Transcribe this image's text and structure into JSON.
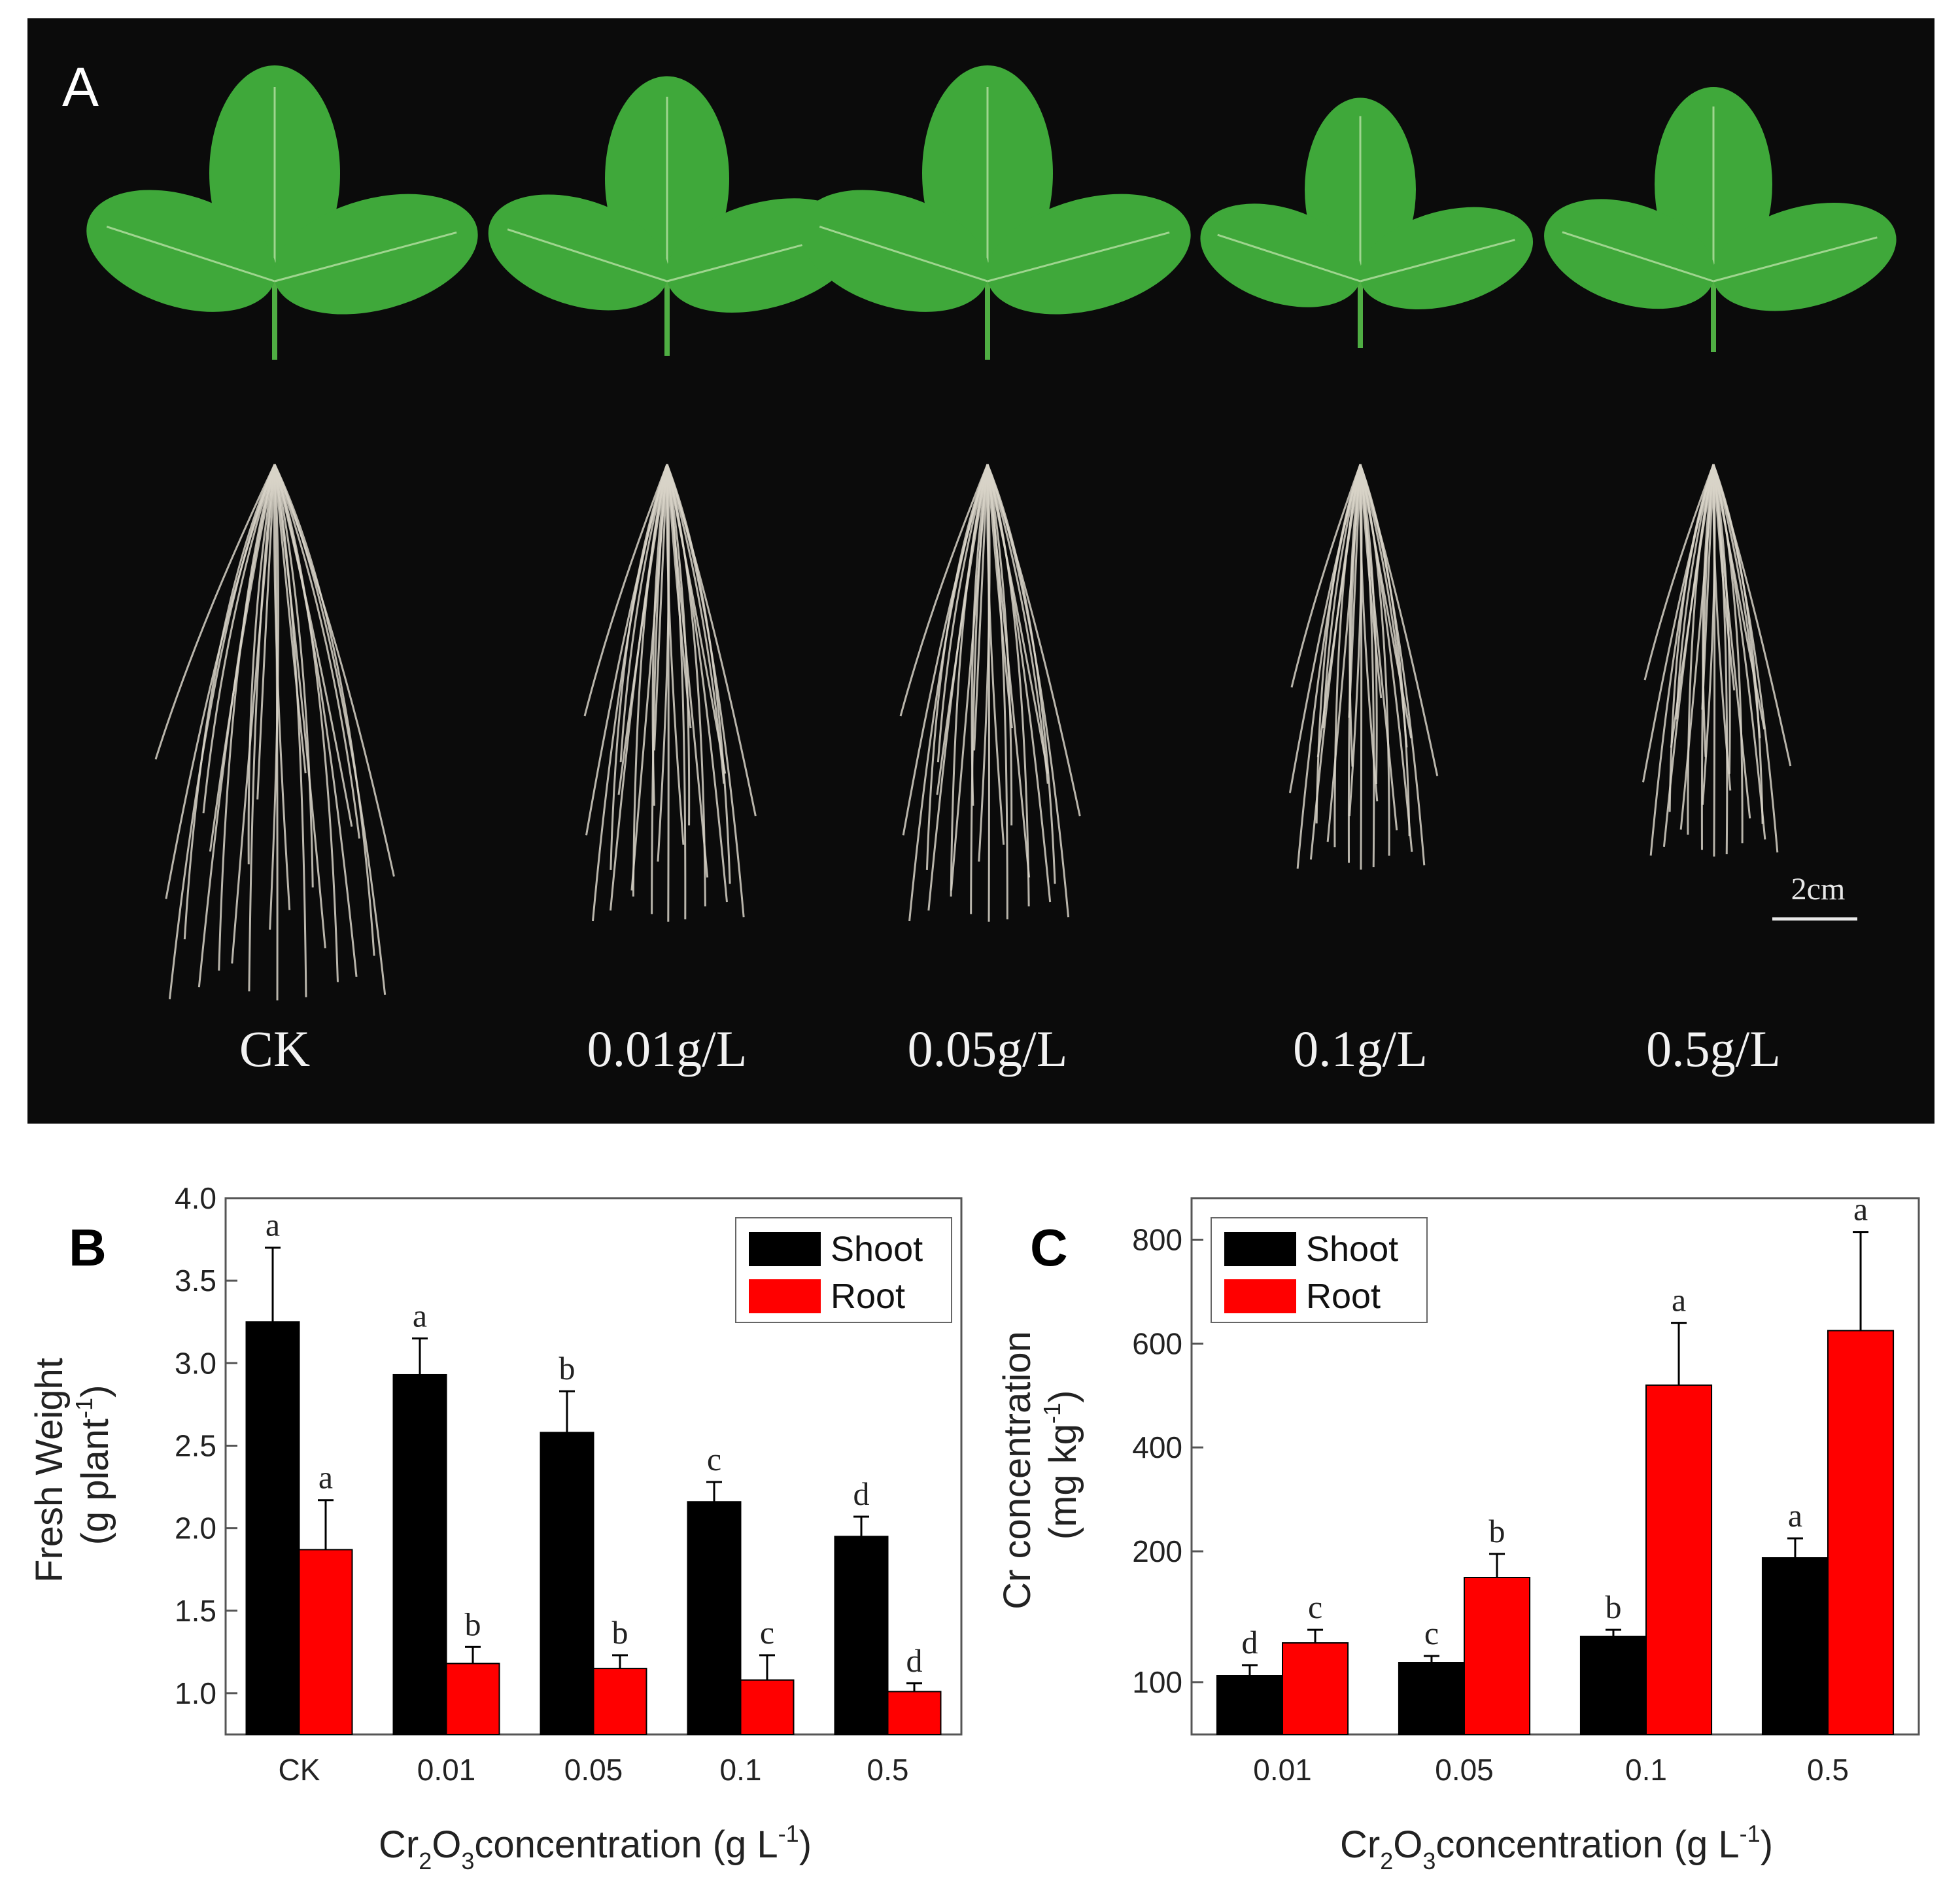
{
  "panel_a": {
    "label": "A",
    "treatments": [
      "CK",
      "0.01g/L",
      "0.05g/L",
      "0.1g/L",
      "0.5g/L"
    ],
    "scale_bar": "2cm",
    "colors": {
      "background": "#0b0b0b",
      "leaf": "#3fa83a",
      "leaf_dark": "#2e8a2c",
      "root": "#d8d4c8"
    }
  },
  "chart_data": [
    {
      "panel": "B",
      "type": "bar",
      "categories": [
        "CK",
        "0.01",
        "0.05",
        "0.1",
        "0.5"
      ],
      "series": [
        {
          "name": "Shoot",
          "color": "#000000",
          "values": [
            3.25,
            2.93,
            2.58,
            2.16,
            1.95
          ],
          "errors": [
            0.45,
            0.22,
            0.25,
            0.12,
            0.12
          ],
          "letters": [
            "a",
            "a",
            "b",
            "c",
            "d"
          ]
        },
        {
          "name": "Root",
          "color": "#ff0000",
          "values": [
            1.87,
            1.18,
            1.15,
            1.08,
            1.01
          ],
          "errors": [
            0.3,
            0.1,
            0.08,
            0.15,
            0.05
          ],
          "letters": [
            "a",
            "b",
            "b",
            "c",
            "d"
          ]
        }
      ],
      "ylim": [
        0.75,
        4.0
      ],
      "yticks": [
        "1.0",
        "1.5",
        "2.0",
        "2.5",
        "3.0",
        "3.5",
        "4.0"
      ],
      "ylabel_line1": "Fresh Weight",
      "ylabel_line2": "(g plant",
      "ylabel_sup": "-1",
      "ylabel_close": ")",
      "xlabel_pre": "Cr",
      "xlabel_sub1": "2",
      "xlabel_mid": "O",
      "xlabel_sub2": "3",
      "xlabel_post": "concentration (g L",
      "xlabel_sup": "-1",
      "xlabel_close": ")",
      "legend": "top-right",
      "grid": false
    },
    {
      "panel": "C",
      "type": "bar",
      "categories": [
        "0.01",
        "0.05",
        "0.1",
        "0.5"
      ],
      "series": [
        {
          "name": "Shoot",
          "color": "#000000",
          "values": [
            105,
            115,
            135,
            195
          ],
          "errors": [
            8,
            5,
            5,
            30
          ],
          "letters": [
            "d",
            "c",
            "b",
            "a"
          ]
        },
        {
          "name": "Root",
          "color": "#ff0000",
          "values": [
            130,
            180,
            520,
            625
          ],
          "errors": [
            10,
            18,
            120,
            190
          ],
          "letters": [
            "c",
            "b",
            "a",
            "a"
          ]
        }
      ],
      "ymin": 60,
      "ymax": 880,
      "ytick_values": [
        100,
        200,
        400,
        600,
        800
      ],
      "yticks": [
        "100",
        "200",
        "400",
        "600",
        "800"
      ],
      "ylabel_line1": "Cr concentration",
      "ylabel_line2": "(mg kg",
      "ylabel_sup": "-1",
      "ylabel_close": ")",
      "xlabel_pre": "Cr",
      "xlabel_sub1": "2",
      "xlabel_mid": "O",
      "xlabel_sub2": "3",
      "xlabel_post": "concentration (g L",
      "xlabel_sup": "-1",
      "xlabel_close": ")",
      "legend": "top-left",
      "grid": false
    }
  ]
}
